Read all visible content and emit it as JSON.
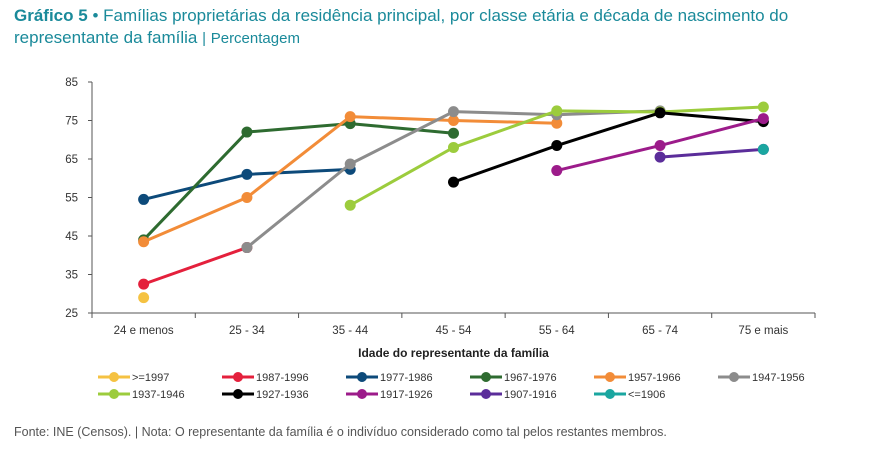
{
  "header": {
    "number": "Gráfico 5",
    "bullet": "•",
    "title": "Famílias proprietárias da residência principal, por classe etária e década de nascimento do representante da família",
    "separator": "|",
    "unit": "Percentagem"
  },
  "footer": {
    "text": "Fonte: INE (Censos).  |  Nota: O representante da família é o indivíduo considerado como tal pelos restantes membros."
  },
  "chart_data": {
    "type": "line",
    "title": "Famílias proprietárias da residência principal, por classe etária e década de nascimento do representante da família",
    "xlabel": "Idade do representante da família",
    "ylabel": "Percentagem",
    "categories": [
      "24 e menos",
      "25 - 34",
      "35 - 44",
      "45 - 54",
      "55 - 64",
      "65 - 74",
      "75 e mais"
    ],
    "yticks": [
      25,
      35,
      45,
      55,
      65,
      75,
      85
    ],
    "ylim": [
      25,
      85
    ],
    "grid": false,
    "legend": "bottom",
    "series": [
      {
        "name": ">=1997",
        "color": "#f5c242",
        "values": [
          29,
          null,
          null,
          null,
          null,
          null,
          null
        ]
      },
      {
        "name": "1987-1996",
        "color": "#e4203c",
        "values": [
          32.5,
          42,
          null,
          null,
          null,
          null,
          null
        ]
      },
      {
        "name": "1977-1986",
        "color": "#0d4a7a",
        "values": [
          54.5,
          61,
          62.3,
          null,
          null,
          null,
          null
        ]
      },
      {
        "name": "1967-1976",
        "color": "#2e6b30",
        "values": [
          44,
          72,
          74.2,
          71.7,
          null,
          null,
          null
        ]
      },
      {
        "name": "1957-1966",
        "color": "#f28c38",
        "values": [
          43.5,
          55,
          76,
          75,
          74.3,
          null,
          null
        ]
      },
      {
        "name": "1947-1956",
        "color": "#8c8c8c",
        "values": [
          null,
          42,
          63.7,
          77.3,
          76.5,
          77.5,
          null
        ]
      },
      {
        "name": "1937-1946",
        "color": "#9ccc3d",
        "values": [
          null,
          null,
          53,
          68,
          77.5,
          77.2,
          78.5
        ]
      },
      {
        "name": "1927-1936",
        "color": "#000000",
        "values": [
          null,
          null,
          null,
          59,
          68.5,
          77,
          74.7
        ]
      },
      {
        "name": "1917-1926",
        "color": "#9c1b8a",
        "values": [
          null,
          null,
          null,
          null,
          62,
          68.5,
          75.5
        ]
      },
      {
        "name": "1907-1916",
        "color": "#5b2d9a",
        "values": [
          null,
          null,
          null,
          null,
          null,
          65.5,
          67.5
        ]
      },
      {
        "name": "<=1906",
        "color": "#1aa6a0",
        "values": [
          null,
          null,
          null,
          null,
          null,
          null,
          67.5
        ]
      }
    ]
  }
}
